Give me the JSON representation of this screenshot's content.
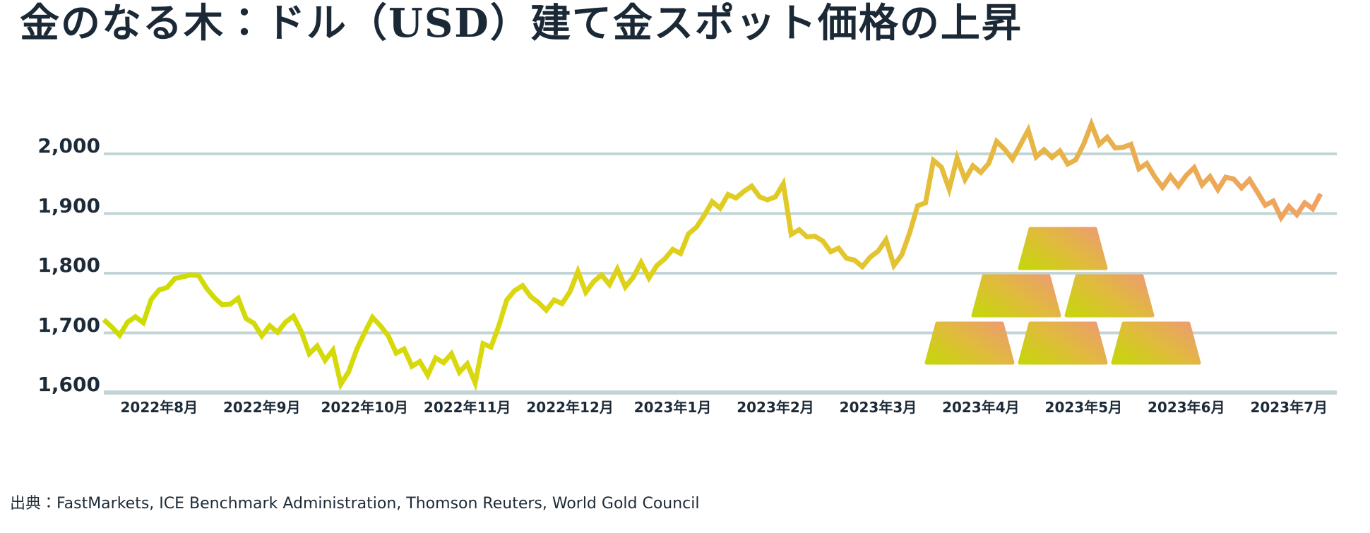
{
  "title": "金のなる木：ドル（USD）建て金スポット価格の上昇",
  "source": "出典：FastMarkets, ICE Benchmark Administration, Thomson Reuters, World Gold Council",
  "colors": {
    "background": "#ffffff",
    "title_text": "#1b2836",
    "axis_text": "#1d2b38",
    "gridline": "#c3d4d6"
  },
  "chart_data": {
    "type": "line",
    "title": "金のなる木：ドル（USD）建て金スポット価格の上昇",
    "xlabel": "",
    "ylabel": "",
    "ylim": [
      1600,
      2050
    ],
    "y_gridlines": [
      2000,
      1900,
      1800,
      1700,
      1600
    ],
    "y_tick_labels": [
      "2,000",
      "1,900",
      "1,800",
      "1,700",
      "1,600"
    ],
    "grid": "horizontal-only",
    "legend": "none",
    "series_name": "gold-spot-price-usd",
    "line_gradient": [
      {
        "offset": 0,
        "color": "#cedc03"
      },
      {
        "offset": 0.35,
        "color": "#dbd70f"
      },
      {
        "offset": 0.6,
        "color": "#e2c72c"
      },
      {
        "offset": 0.8,
        "color": "#e8b14b"
      },
      {
        "offset": 1,
        "color": "#f0a262"
      }
    ],
    "months": [
      {
        "label": "",
        "values": [
          1722,
          1710,
          1696,
          1718,
          1727,
          1717,
          1756
        ]
      },
      {
        "label": "2022年8月",
        "values": [
          1772,
          1776,
          1791,
          1794,
          1797,
          1796,
          1775,
          1759,
          1747,
          1748,
          1758,
          1724,
          1716
        ]
      },
      {
        "label": "2022年9月",
        "values": [
          1695,
          1712,
          1701,
          1718,
          1728,
          1702,
          1665,
          1678,
          1654,
          1671,
          1614,
          1635,
          1672
        ]
      },
      {
        "label": "2022年10月",
        "values": [
          1700,
          1726,
          1712,
          1695,
          1666,
          1673,
          1644,
          1652,
          1629,
          1658,
          1650,
          1665,
          1634
        ]
      },
      {
        "label": "2022年11月",
        "values": [
          1648,
          1616,
          1682,
          1676,
          1712,
          1755,
          1771,
          1779,
          1761,
          1751,
          1738,
          1755,
          1749
        ]
      },
      {
        "label": "2022年12月",
        "values": [
          1769,
          1803,
          1768,
          1786,
          1797,
          1781,
          1807,
          1777,
          1793,
          1818,
          1792,
          1813,
          1824
        ]
      },
      {
        "label": "2023年1月",
        "values": [
          1840,
          1833,
          1866,
          1877,
          1897,
          1920,
          1909,
          1932,
          1926,
          1937,
          1946,
          1928,
          1923
        ]
      },
      {
        "label": "2023年2月",
        "values": [
          1928,
          1950,
          1865,
          1873,
          1861,
          1862,
          1854,
          1836,
          1842,
          1825,
          1822,
          1811,
          1827
        ]
      },
      {
        "label": "2023年3月",
        "values": [
          1837,
          1856,
          1813,
          1831,
          1868,
          1913,
          1918,
          1989,
          1978,
          1941,
          1993,
          1957,
          1980
        ]
      },
      {
        "label": "2023年4月",
        "values": [
          1969,
          1984,
          2021,
          2008,
          1991,
          2015,
          2040,
          1995,
          2007,
          1994,
          2005,
          1983,
          1990
        ]
      },
      {
        "label": "2023年5月",
        "values": [
          2016,
          2050,
          2016,
          2028,
          2010,
          2011,
          2016,
          1975,
          1984,
          1962,
          1944,
          1963,
          1946
        ]
      },
      {
        "label": "2023年6月",
        "values": [
          1964,
          1977,
          1948,
          1962,
          1940,
          1961,
          1958,
          1943,
          1957,
          1936,
          1914,
          1921,
          1893
        ]
      },
      {
        "label": "2023年7月",
        "values": [
          1912,
          1898,
          1918,
          1908,
          1933
        ]
      }
    ],
    "decoration": {
      "icon": "gold-bars-pyramid",
      "bar_count": 6,
      "rows": [
        3,
        2,
        1
      ],
      "bar_gradient": [
        {
          "offset": 0,
          "color": "#c8d40f"
        },
        {
          "offset": 0.5,
          "color": "#e0bb3c"
        },
        {
          "offset": 1,
          "color": "#ec9e6e"
        }
      ]
    }
  }
}
